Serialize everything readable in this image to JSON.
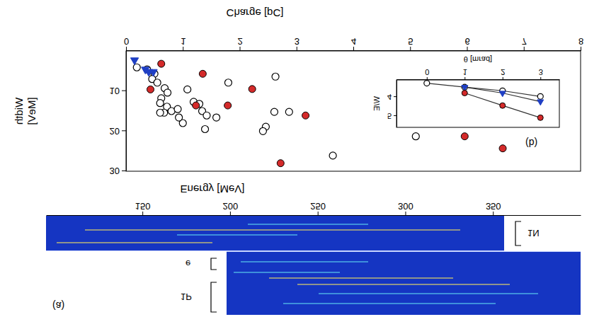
{
  "chart_data": [
    {
      "type": "image",
      "panel": "(a)",
      "xlabel": "Energy [MeV]",
      "xlim": [
        95,
        400
      ],
      "xticks": [
        150,
        200,
        250,
        300,
        350
      ],
      "annotations": [
        "1N",
        "e",
        "1P"
      ]
    },
    {
      "type": "scatter",
      "panel": "(b)",
      "xlabel": "Charge [pC]",
      "ylabel": "Width [MeV]",
      "xlim": [
        0,
        8
      ],
      "xticks": [
        0,
        1,
        2,
        3,
        4,
        5,
        6,
        7,
        8
      ],
      "ylim": [
        0,
        30
      ],
      "yticks": [
        10,
        20,
        30
      ],
      "series": [
        {
          "color": "#000000",
          "marker": "circle_open",
          "x": [
            0.19,
            0.37,
            0.5,
            0.46,
            0.55,
            0.68,
            0.73,
            0.62,
            0.6,
            0.72,
            0.67,
            0.8,
            0.91,
            1.0,
            0.93,
            1.08,
            1.19,
            1.29,
            1.34,
            1.42,
            1.39,
            1.59,
            1.8,
            2.46,
            2.41,
            2.61,
            2.87,
            2.63,
            3.64,
            5.1,
            0.6
          ],
          "values": [
            4.1,
            4.6,
            5.7,
            7.0,
            7.9,
            9.3,
            10.4,
            11.8,
            13.0,
            13.9,
            15.4,
            15.0,
            14.5,
            18.0,
            16.6,
            9.6,
            12.7,
            13.2,
            15.0,
            16.1,
            19.5,
            16.6,
            7.9,
            18.9,
            20.0,
            15.2,
            15.2,
            6.4,
            26.1,
            21.3,
            15.4
          ]
        },
        {
          "color": "#d42a2a",
          "marker": "circle",
          "x": [
            0.62,
            1.35,
            0.43,
            2.22,
            1.79,
            1.23,
            3.16,
            2.72,
            5.96,
            6.63
          ],
          "values": [
            3.2,
            5.7,
            9.6,
            9.5,
            13.6,
            13.6,
            16.1,
            28.0,
            21.3,
            24.3
          ]
        },
        {
          "color": "#1f3fc4",
          "marker": "triangle",
          "x": [
            0.15,
            0.34,
            0.4,
            0.48
          ],
          "values": [
            2.3,
            4.6,
            5.2,
            5.2
          ]
        }
      ]
    },
    {
      "type": "line",
      "xlabel": "θ [mrad]",
      "ylabel": "W/E",
      "xlim": [
        -0.8,
        3.5
      ],
      "xticks": [
        0,
        1,
        2,
        3
      ],
      "ylim": [
        3.1,
        5.6
      ],
      "yticks": [
        4,
        5
      ],
      "series": [
        {
          "color": "#000000",
          "marker": "circle_open",
          "x": [
            0,
            1,
            2,
            3
          ],
          "values": [
            3.27,
            3.48,
            3.67,
            3.97
          ]
        },
        {
          "color": "#1f3fc4",
          "marker": "triangle",
          "x": [
            1,
            2,
            3
          ],
          "values": [
            3.48,
            3.79,
            4.24
          ]
        },
        {
          "color": "#d42a2a",
          "marker": "circle",
          "x": [
            1,
            2,
            3
          ],
          "values": [
            3.79,
            4.45,
            5.09
          ]
        }
      ]
    }
  ]
}
